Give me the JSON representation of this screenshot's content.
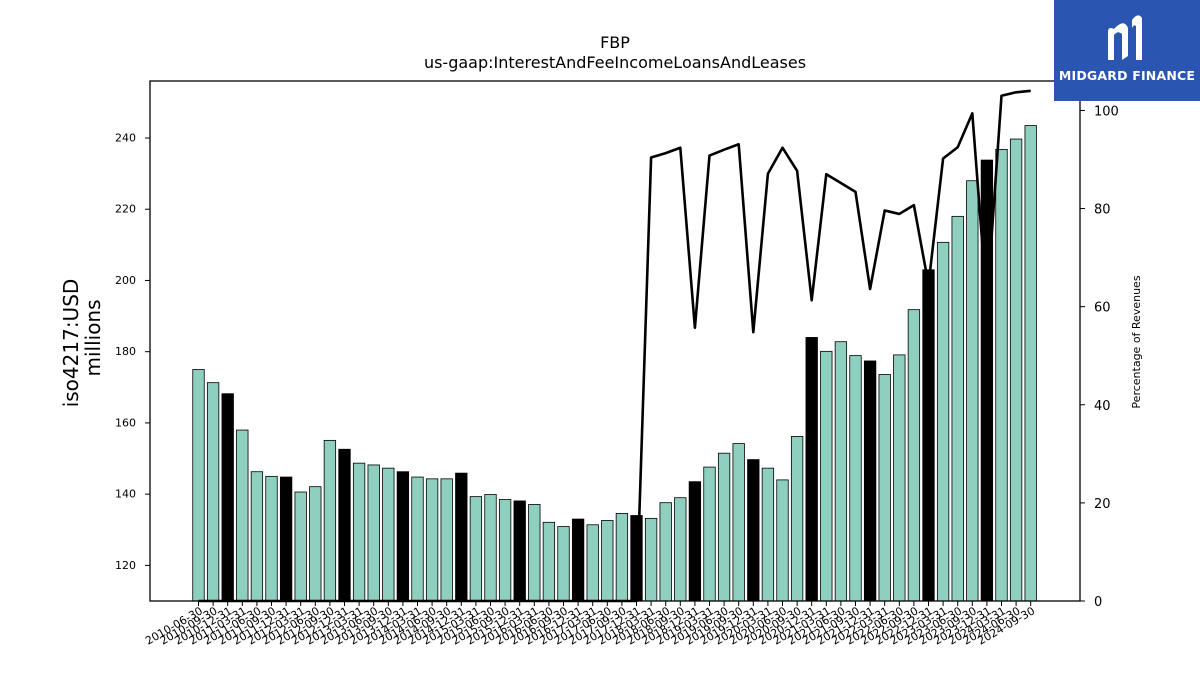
{
  "brand": {
    "name": "MIDGARD FINANCE",
    "logo_icon": "midgard-logo-icon",
    "bg_color": "#2a55b0"
  },
  "chart_data": {
    "type": "bar",
    "title": "FBP",
    "subtitle": "us-gaap:InterestAndFeeIncomeLoansAndLeases",
    "ylabel_line1": "iso4217:USD",
    "ylabel_line2": "millions",
    "y2label": "Percentage of Revenues",
    "ylim": [
      110,
      256
    ],
    "y2lim": [
      0,
      106
    ],
    "yticks": [
      120,
      140,
      160,
      180,
      200,
      220,
      240
    ],
    "y2ticks": [
      0,
      20,
      40,
      60,
      80,
      100
    ],
    "bar_color": "#8ecfc0",
    "highlight_color": "#000000",
    "line_color": "#000000",
    "categories": [
      "2010-06-30",
      "2010-09-30",
      "2010-12-31",
      "2011-03-31",
      "2011-06-30",
      "2011-09-30",
      "2011-12-31",
      "2012-03-31",
      "2012-06-30",
      "2012-09-30",
      "2012-12-31",
      "2013-03-31",
      "2013-06-30",
      "2013-09-30",
      "2013-12-31",
      "2014-03-31",
      "2014-06-30",
      "2014-09-30",
      "2014-12-31",
      "2015-03-31",
      "2015-06-30",
      "2015-09-30",
      "2015-12-31",
      "2016-03-31",
      "2016-06-30",
      "2016-09-30",
      "2016-12-31",
      "2017-03-31",
      "2017-06-30",
      "2017-09-30",
      "2017-12-31",
      "2018-03-31",
      "2018-06-30",
      "2018-09-30",
      "2018-12-31",
      "2019-03-31",
      "2019-06-30",
      "2019-09-30",
      "2019-12-31",
      "2020-03-31",
      "2020-06-30",
      "2020-09-30",
      "2020-12-31",
      "2021-03-31",
      "2021-06-30",
      "2021-09-30",
      "2021-12-31",
      "2022-03-31",
      "2022-06-30",
      "2022-09-30",
      "2022-12-31",
      "2023-03-31",
      "2023-06-30",
      "2023-09-30",
      "2023-12-31",
      "2024-03-31",
      "2024-06-30",
      "2024-09-30"
    ],
    "xtick_labels": [
      "2010-06-30",
      "2010-09-30",
      "2010-12-31",
      "2011-03-31",
      "2011-06-30",
      "2011-09-30",
      "2011-12-31",
      "2012-03-31",
      "2012-06-30",
      "2012-09-30",
      "2012-12-31",
      "2013-03-31",
      "2013-06-30",
      "2013-09-30",
      "2013-12-31",
      "2014-03-31",
      "2014-06-30",
      "2014-09-30",
      "2014-12-31",
      "2015-03-31",
      "2015-06-30",
      "2015-09-30",
      "2015-12-31",
      "2016-03-31",
      "2016-06-30",
      "2016-09-30",
      "2016-12-31",
      "2017-03-31",
      "2017-06-30",
      "2017-09-30",
      "2017-12-31",
      "2018-03-31",
      "2018-06-30",
      "2018-09-30",
      "2018-12-31",
      "2019-03-31",
      "2019-06-30",
      "2019-09-30",
      "2019-12-31",
      "2020-03-31",
      "2020-06-30",
      "2020-09-30",
      "2020-12-31",
      "2021-03-31",
      "2021-06-30",
      "2021-09-30",
      "2021-12-31",
      "2022-03-31",
      "2022-06-30",
      "2022-09-30",
      "2022-12-31",
      "2023-03-31",
      "2023-06-30",
      "2023-09-30",
      "2023-12-31",
      "2024-03-31",
      "2024-06-30",
      "2024-09-30"
    ],
    "values": [
      175.0,
      171.3,
      168.2,
      158.0,
      146.3,
      145.0,
      144.8,
      140.6,
      142.1,
      155.1,
      152.6,
      148.7,
      148.2,
      147.3,
      146.3,
      144.8,
      144.3,
      144.3,
      145.9,
      139.3,
      139.9,
      138.5,
      138.1,
      137.1,
      132.1,
      130.9,
      133.0,
      131.4,
      132.6,
      134.6,
      134.0,
      133.2,
      137.6,
      139.0,
      143.5,
      147.6,
      151.5,
      154.2,
      149.7,
      147.3,
      144.0,
      156.2,
      184.0,
      180.1,
      182.8,
      178.9,
      177.4,
      173.6,
      179.1,
      191.8,
      203.0,
      210.7,
      218.0,
      228.0,
      233.8,
      236.8,
      239.7,
      243.5
    ],
    "highlighted": [
      false,
      false,
      true,
      false,
      false,
      false,
      true,
      false,
      false,
      false,
      true,
      false,
      false,
      false,
      true,
      false,
      false,
      false,
      true,
      false,
      false,
      false,
      true,
      false,
      false,
      false,
      true,
      false,
      false,
      false,
      true,
      false,
      false,
      false,
      true,
      false,
      false,
      false,
      true,
      false,
      false,
      false,
      true,
      false,
      false,
      false,
      true,
      false,
      false,
      false,
      true,
      false,
      false,
      false,
      true,
      false,
      false,
      false
    ],
    "line_series": {
      "name": "Percentage of Revenues",
      "values": [
        0,
        0,
        0,
        0,
        0,
        0,
        0,
        0,
        0,
        0,
        0,
        0,
        0,
        0,
        0,
        0,
        0,
        0,
        0,
        0,
        0,
        0,
        0,
        0,
        0,
        0,
        0,
        0,
        0,
        0,
        0,
        90.4,
        91.3,
        92.4,
        55.7,
        90.8,
        92.0,
        93.1,
        54.8,
        87.1,
        92.4,
        87.7,
        61.3,
        87.0,
        85.2,
        83.4,
        63.6,
        79.6,
        78.9,
        80.7,
        64.5,
        90.2,
        92.5,
        99.4,
        60.6,
        103.0,
        103.7,
        104.0
      ]
    }
  }
}
